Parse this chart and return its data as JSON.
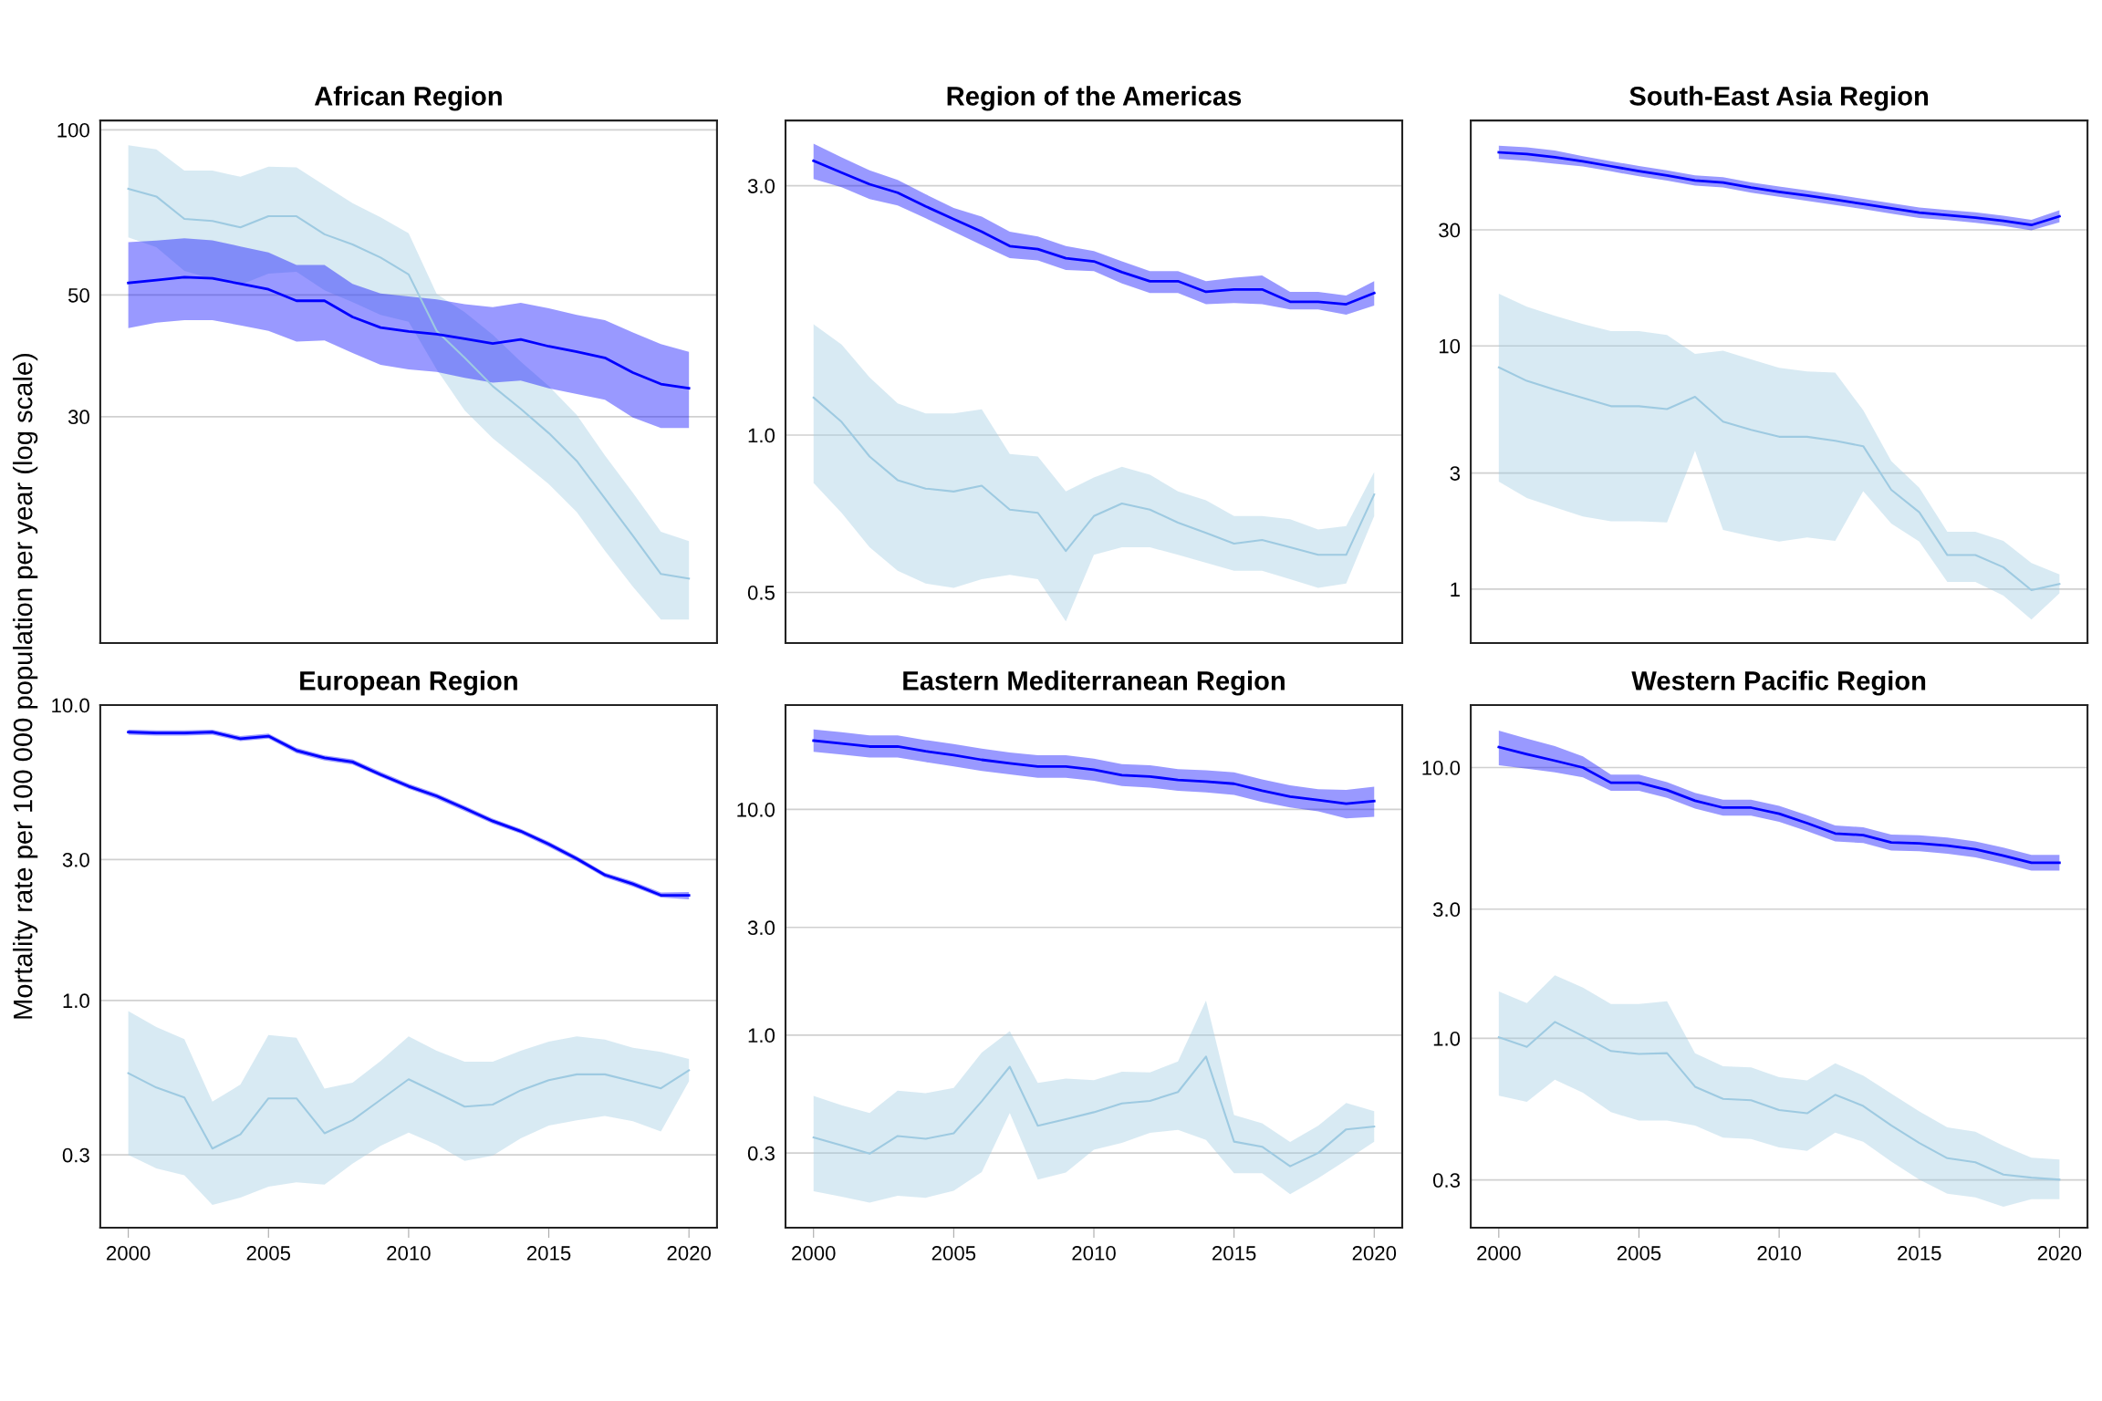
{
  "chart_data": [
    {
      "type": "line",
      "title": "African Region",
      "ylabel": "Mortality rate per 100 000 population per year (log scale)",
      "log": "y",
      "grid": "y",
      "tick_labels": "y",
      "x": [
        2000,
        2001,
        2002,
        2003,
        2004,
        2005,
        2006,
        2007,
        2008,
        2009,
        2010,
        2011,
        2012,
        2013,
        2014,
        2015,
        2016,
        2017,
        2018,
        2019,
        2020
      ],
      "xlim": [
        1999,
        2021
      ],
      "xticks": [
        2000,
        2005,
        2010,
        2015,
        2020
      ],
      "ylim": [
        11.6,
        104
      ],
      "yticks": [
        30,
        50,
        100
      ],
      "series": [
        {
          "type": "line",
          "color": "#9ecae1",
          "values": [
            78.1,
            75.6,
            68.8,
            68.2,
            66.4,
            69.6,
            69.6,
            64.5,
            61.8,
            58.5,
            54.5,
            43.0,
            38.4,
            34.1,
            31.0,
            28.0,
            24.9,
            21.3,
            18.2,
            15.5,
            15.2
          ],
          "lower": [
            63.7,
            61.1,
            55.3,
            53.5,
            52.2,
            54.7,
            55.1,
            51.0,
            48.5,
            46.0,
            44.7,
            36.6,
            30.8,
            27.4,
            24.9,
            22.6,
            20.1,
            17.1,
            14.7,
            12.8,
            12.8
          ],
          "upper": [
            93.7,
            92.1,
            84.3,
            84.3,
            82.1,
            85.7,
            85.4,
            79.2,
            73.5,
            69.3,
            64.8,
            50.2,
            46.5,
            42.3,
            37.8,
            34.1,
            30.2,
            25.5,
            21.8,
            18.5,
            17.8
          ]
        },
        {
          "type": "line",
          "color": "#0000ff",
          "values": [
            52.6,
            53.2,
            53.9,
            53.6,
            52.4,
            51.2,
            48.8,
            48.8,
            45.6,
            43.6,
            42.9,
            42.4,
            41.6,
            40.8,
            41.5,
            40.3,
            39.4,
            38.4,
            36.1,
            34.4,
            33.8
          ],
          "lower": [
            43.5,
            44.5,
            45.0,
            45.0,
            44.0,
            43.0,
            41.1,
            41.3,
            39.2,
            37.3,
            36.6,
            36.2,
            35.3,
            34.6,
            34.9,
            33.8,
            33.0,
            32.2,
            29.9,
            28.6,
            28.6
          ],
          "upper": [
            62.4,
            62.8,
            63.4,
            62.9,
            61.3,
            59.8,
            56.7,
            56.7,
            52.4,
            50.3,
            49.7,
            49.1,
            48.1,
            47.5,
            48.4,
            47.3,
            46.0,
            45.0,
            42.7,
            40.7,
            39.4
          ]
        }
      ]
    },
    {
      "type": "line",
      "title": "Region of the Americas",
      "log": "y",
      "grid": "y",
      "tick_labels": "y",
      "x": [
        2000,
        2001,
        2002,
        2003,
        2004,
        2005,
        2006,
        2007,
        2008,
        2009,
        2010,
        2011,
        2012,
        2013,
        2014,
        2015,
        2016,
        2017,
        2018,
        2019,
        2020
      ],
      "xlim": [
        1999,
        2021
      ],
      "xticks": [
        2000,
        2005,
        2010,
        2015,
        2020
      ],
      "ylim": [
        0.4,
        4.0
      ],
      "yticks": [
        0.5,
        {
          "value": 1,
          "label": "1.0"
        },
        {
          "value": 3,
          "label": "3.0"
        }
      ],
      "series": [
        {
          "type": "line",
          "color": "#9ecae1",
          "values": [
            1.18,
            1.06,
            0.91,
            0.82,
            0.79,
            0.78,
            0.8,
            0.72,
            0.71,
            0.6,
            0.7,
            0.74,
            0.72,
            0.68,
            0.65,
            0.62,
            0.63,
            0.61,
            0.59,
            0.59,
            0.77
          ],
          "lower": [
            0.81,
            0.71,
            0.61,
            0.55,
            0.52,
            0.51,
            0.53,
            0.54,
            0.53,
            0.44,
            0.59,
            0.61,
            0.61,
            0.59,
            0.57,
            0.55,
            0.55,
            0.53,
            0.51,
            0.52,
            0.7
          ],
          "upper": [
            1.63,
            1.49,
            1.29,
            1.15,
            1.1,
            1.1,
            1.12,
            0.92,
            0.91,
            0.78,
            0.83,
            0.87,
            0.84,
            0.78,
            0.75,
            0.7,
            0.7,
            0.69,
            0.66,
            0.67,
            0.85
          ]
        },
        {
          "type": "line",
          "color": "#0000ff",
          "values": [
            3.35,
            3.18,
            3.02,
            2.91,
            2.74,
            2.59,
            2.45,
            2.3,
            2.27,
            2.18,
            2.15,
            2.05,
            1.97,
            1.97,
            1.88,
            1.9,
            1.9,
            1.8,
            1.8,
            1.78,
            1.87
          ],
          "lower": [
            3.09,
            2.98,
            2.83,
            2.75,
            2.6,
            2.45,
            2.31,
            2.18,
            2.16,
            2.07,
            2.06,
            1.95,
            1.87,
            1.87,
            1.78,
            1.79,
            1.78,
            1.74,
            1.74,
            1.7,
            1.77
          ],
          "upper": [
            3.61,
            3.4,
            3.21,
            3.08,
            2.89,
            2.72,
            2.62,
            2.45,
            2.4,
            2.3,
            2.25,
            2.15,
            2.06,
            2.06,
            1.97,
            2.0,
            2.02,
            1.88,
            1.88,
            1.85,
            1.97
          ]
        }
      ]
    },
    {
      "type": "line",
      "title": "South-East Asia Region",
      "log": "y",
      "grid": "y",
      "tick_labels": "y",
      "x": [
        2000,
        2001,
        2002,
        2003,
        2004,
        2005,
        2006,
        2007,
        2008,
        2009,
        2010,
        2011,
        2012,
        2013,
        2014,
        2015,
        2016,
        2017,
        2018,
        2019,
        2020
      ],
      "xlim": [
        1999,
        2021
      ],
      "xticks": [
        2000,
        2005,
        2010,
        2015,
        2020
      ],
      "ylim": [
        0.6,
        84.5
      ],
      "yticks": [
        1,
        3,
        10,
        30
      ],
      "series": [
        {
          "type": "line",
          "color": "#9ecae1",
          "values": [
            8.16,
            7.18,
            6.6,
            6.11,
            5.65,
            5.65,
            5.5,
            6.18,
            4.88,
            4.52,
            4.23,
            4.23,
            4.07,
            3.87,
            2.56,
            2.07,
            1.38,
            1.38,
            1.23,
            0.99,
            1.05
          ],
          "lower": [
            2.77,
            2.37,
            2.17,
            1.99,
            1.9,
            1.9,
            1.88,
            3.7,
            1.75,
            1.65,
            1.57,
            1.63,
            1.58,
            2.53,
            1.86,
            1.57,
            1.07,
            1.07,
            0.94,
            0.75,
            0.96
          ],
          "upper": [
            16.4,
            14.5,
            13.3,
            12.3,
            11.5,
            11.5,
            11.1,
            9.27,
            9.56,
            8.81,
            8.13,
            7.85,
            7.76,
            5.44,
            3.36,
            2.61,
            1.72,
            1.72,
            1.58,
            1.28,
            1.15
          ]
        },
        {
          "type": "line",
          "color": "#0000ff",
          "values": [
            62.5,
            61.5,
            59.7,
            57.4,
            54.8,
            52.3,
            50.2,
            47.9,
            47.0,
            44.8,
            43.0,
            41.5,
            39.9,
            38.3,
            36.8,
            35.3,
            34.5,
            33.7,
            32.7,
            31.4,
            34.1
          ],
          "lower": [
            58.7,
            57.7,
            56.1,
            54.7,
            52.2,
            49.8,
            47.8,
            45.6,
            44.8,
            42.7,
            41.0,
            39.5,
            38.0,
            36.5,
            35.0,
            33.6,
            32.9,
            32.1,
            31.1,
            29.9,
            32.2
          ],
          "upper": [
            66.6,
            65.5,
            63.6,
            60.3,
            57.5,
            54.9,
            52.7,
            50.3,
            49.4,
            47.0,
            45.2,
            43.6,
            41.9,
            40.2,
            38.6,
            37.1,
            36.2,
            35.4,
            34.3,
            33.0,
            36.1
          ]
        }
      ]
    },
    {
      "type": "line",
      "title": "European Region",
      "log": "y",
      "grid": "y",
      "x": [
        2000,
        2001,
        2002,
        2003,
        2004,
        2005,
        2006,
        2007,
        2008,
        2009,
        2010,
        2011,
        2012,
        2013,
        2014,
        2015,
        2016,
        2017,
        2018,
        2019,
        2020
      ],
      "xlim": [
        1999,
        2021
      ],
      "xticks": [
        2000,
        2005,
        2010,
        2015,
        2020
      ],
      "ylim": [
        0.17,
        10
      ],
      "yticks": [
        {
          "value": 0.3,
          "label": "0.3"
        },
        {
          "value": 1,
          "label": "1.0"
        },
        {
          "value": 3,
          "label": "3.0"
        },
        {
          "value": 10,
          "label": "10.0"
        }
      ],
      "series": [
        {
          "type": "line",
          "color": "#9ecae1",
          "values": [
            0.567,
            0.507,
            0.469,
            0.315,
            0.352,
            0.466,
            0.466,
            0.355,
            0.393,
            0.461,
            0.541,
            0.487,
            0.437,
            0.444,
            0.496,
            0.537,
            0.562,
            0.562,
            0.532,
            0.504,
            0.58
          ],
          "lower": [
            0.3,
            0.27,
            0.256,
            0.203,
            0.215,
            0.234,
            0.242,
            0.238,
            0.28,
            0.322,
            0.357,
            0.325,
            0.286,
            0.298,
            0.341,
            0.377,
            0.393,
            0.406,
            0.39,
            0.36,
            0.532
          ],
          "upper": [
            0.92,
            0.813,
            0.739,
            0.454,
            0.519,
            0.763,
            0.748,
            0.503,
            0.527,
            0.624,
            0.756,
            0.676,
            0.62,
            0.62,
            0.676,
            0.725,
            0.756,
            0.737,
            0.691,
            0.669,
            0.634
          ]
        },
        {
          "type": "line",
          "color": "#0000ff",
          "values": [
            8.1,
            8.05,
            8.05,
            8.1,
            7.7,
            7.85,
            7.02,
            6.63,
            6.42,
            5.82,
            5.31,
            4.92,
            4.47,
            4.05,
            3.74,
            3.38,
            3.02,
            2.66,
            2.48,
            2.27,
            2.27
          ],
          "lower": [
            7.94,
            7.89,
            7.89,
            7.94,
            7.55,
            7.7,
            6.88,
            6.5,
            6.29,
            5.71,
            5.21,
            4.82,
            4.38,
            3.97,
            3.67,
            3.31,
            2.96,
            2.61,
            2.43,
            2.23,
            2.2
          ],
          "upper": [
            8.26,
            8.21,
            8.21,
            8.26,
            7.85,
            8.01,
            7.16,
            6.76,
            6.55,
            5.94,
            5.42,
            5.02,
            4.56,
            4.13,
            3.81,
            3.45,
            3.08,
            2.71,
            2.53,
            2.32,
            2.33
          ]
        }
      ]
    },
    {
      "type": "line",
      "title": "Eastern Mediterranean Region",
      "log": "y",
      "grid": "y",
      "x": [
        2000,
        2001,
        2002,
        2003,
        2004,
        2005,
        2006,
        2007,
        2008,
        2009,
        2010,
        2011,
        2012,
        2013,
        2014,
        2015,
        2016,
        2017,
        2018,
        2019,
        2020
      ],
      "xlim": [
        1999,
        2021
      ],
      "xticks": [
        2000,
        2005,
        2010,
        2015,
        2020
      ],
      "ylim": [
        0.14,
        29
      ],
      "yticks": [
        {
          "value": 0.3,
          "label": "0.3"
        },
        {
          "value": 1,
          "label": "1.0"
        },
        {
          "value": 3,
          "label": "3.0"
        },
        {
          "value": 10,
          "label": "10.0"
        }
      ],
      "series": [
        {
          "type": "line",
          "color": "#9ecae1",
          "values": [
            0.352,
            0.324,
            0.298,
            0.357,
            0.347,
            0.367,
            0.509,
            0.724,
            0.396,
            0.424,
            0.455,
            0.498,
            0.511,
            0.559,
            0.803,
            0.337,
            0.32,
            0.262,
            0.3,
            0.382,
            0.393
          ],
          "lower": [
            0.203,
            0.192,
            0.181,
            0.194,
            0.19,
            0.204,
            0.247,
            0.451,
            0.229,
            0.246,
            0.31,
            0.333,
            0.369,
            0.38,
            0.343,
            0.244,
            0.244,
            0.197,
            0.232,
            0.279,
            0.337
          ],
          "upper": [
            0.537,
            0.488,
            0.451,
            0.567,
            0.553,
            0.583,
            0.837,
            1.04,
            0.613,
            0.641,
            0.631,
            0.688,
            0.683,
            0.764,
            1.42,
            0.442,
            0.406,
            0.336,
            0.396,
            0.5,
            0.46
          ]
        },
        {
          "type": "line",
          "color": "#0000ff",
          "values": [
            20.2,
            19.6,
            19.0,
            19.0,
            18.1,
            17.4,
            16.6,
            16.0,
            15.5,
            15.5,
            15.0,
            14.2,
            14.0,
            13.5,
            13.3,
            13.0,
            12.1,
            11.4,
            11.0,
            10.6,
            10.9
          ],
          "lower": [
            18.0,
            17.5,
            17.0,
            17.0,
            16.2,
            15.5,
            14.8,
            14.3,
            13.8,
            13.8,
            13.4,
            12.7,
            12.5,
            12.1,
            11.9,
            11.6,
            10.8,
            10.2,
            9.8,
            9.13,
            9.28
          ],
          "upper": [
            22.6,
            22.0,
            21.3,
            21.3,
            20.3,
            19.5,
            18.6,
            17.9,
            17.4,
            17.4,
            16.8,
            15.9,
            15.7,
            15.1,
            14.9,
            14.6,
            13.6,
            12.8,
            12.3,
            12.2,
            12.6
          ]
        }
      ]
    },
    {
      "type": "line",
      "title": "Western Pacific Region",
      "log": "y",
      "grid": "y",
      "x": [
        2000,
        2001,
        2002,
        2003,
        2004,
        2005,
        2006,
        2007,
        2008,
        2009,
        2010,
        2011,
        2012,
        2013,
        2014,
        2015,
        2016,
        2017,
        2018,
        2019,
        2020
      ],
      "xlim": [
        1999,
        2021
      ],
      "xticks": [
        2000,
        2005,
        2010,
        2015,
        2020
      ],
      "ylim": [
        0.2,
        17
      ],
      "yticks": [
        {
          "value": 0.3,
          "label": "0.3"
        },
        {
          "value": 1,
          "label": "1.0"
        },
        {
          "value": 3,
          "label": "3.0"
        },
        {
          "value": 10,
          "label": "10.0"
        }
      ],
      "series": [
        {
          "type": "line",
          "color": "#9ecae1",
          "values": [
            1.01,
            0.93,
            1.15,
            1.02,
            0.898,
            0.876,
            0.882,
            0.663,
            0.598,
            0.591,
            0.544,
            0.529,
            0.619,
            0.563,
            0.477,
            0.411,
            0.361,
            0.349,
            0.314,
            0.306,
            0.301
          ],
          "lower": [
            0.615,
            0.583,
            0.704,
            0.63,
            0.534,
            0.497,
            0.497,
            0.477,
            0.43,
            0.425,
            0.396,
            0.384,
            0.449,
            0.415,
            0.351,
            0.301,
            0.267,
            0.259,
            0.239,
            0.255,
            0.255
          ],
          "upper": [
            1.49,
            1.35,
            1.71,
            1.54,
            1.34,
            1.34,
            1.37,
            0.882,
            0.789,
            0.781,
            0.719,
            0.699,
            0.809,
            0.729,
            0.625,
            0.538,
            0.469,
            0.452,
            0.401,
            0.363,
            0.357
          ]
        },
        {
          "type": "line",
          "color": "#0000ff",
          "values": [
            11.9,
            11.2,
            10.6,
            10.0,
            8.79,
            8.79,
            8.26,
            7.54,
            7.11,
            7.11,
            6.75,
            6.23,
            5.71,
            5.63,
            5.29,
            5.25,
            5.15,
            4.99,
            4.73,
            4.45,
            4.45
          ],
          "lower": [
            10.2,
            9.9,
            9.6,
            9.2,
            8.21,
            8.21,
            7.72,
            7.05,
            6.64,
            6.64,
            6.31,
            5.82,
            5.34,
            5.26,
            4.94,
            4.91,
            4.81,
            4.66,
            4.42,
            4.16,
            4.16
          ],
          "upper": [
            13.7,
            12.8,
            12.0,
            11.0,
            9.41,
            9.41,
            8.84,
            8.07,
            7.61,
            7.61,
            7.22,
            6.67,
            6.11,
            6.02,
            5.66,
            5.62,
            5.51,
            5.34,
            5.06,
            4.76,
            4.76
          ]
        }
      ]
    }
  ]
}
